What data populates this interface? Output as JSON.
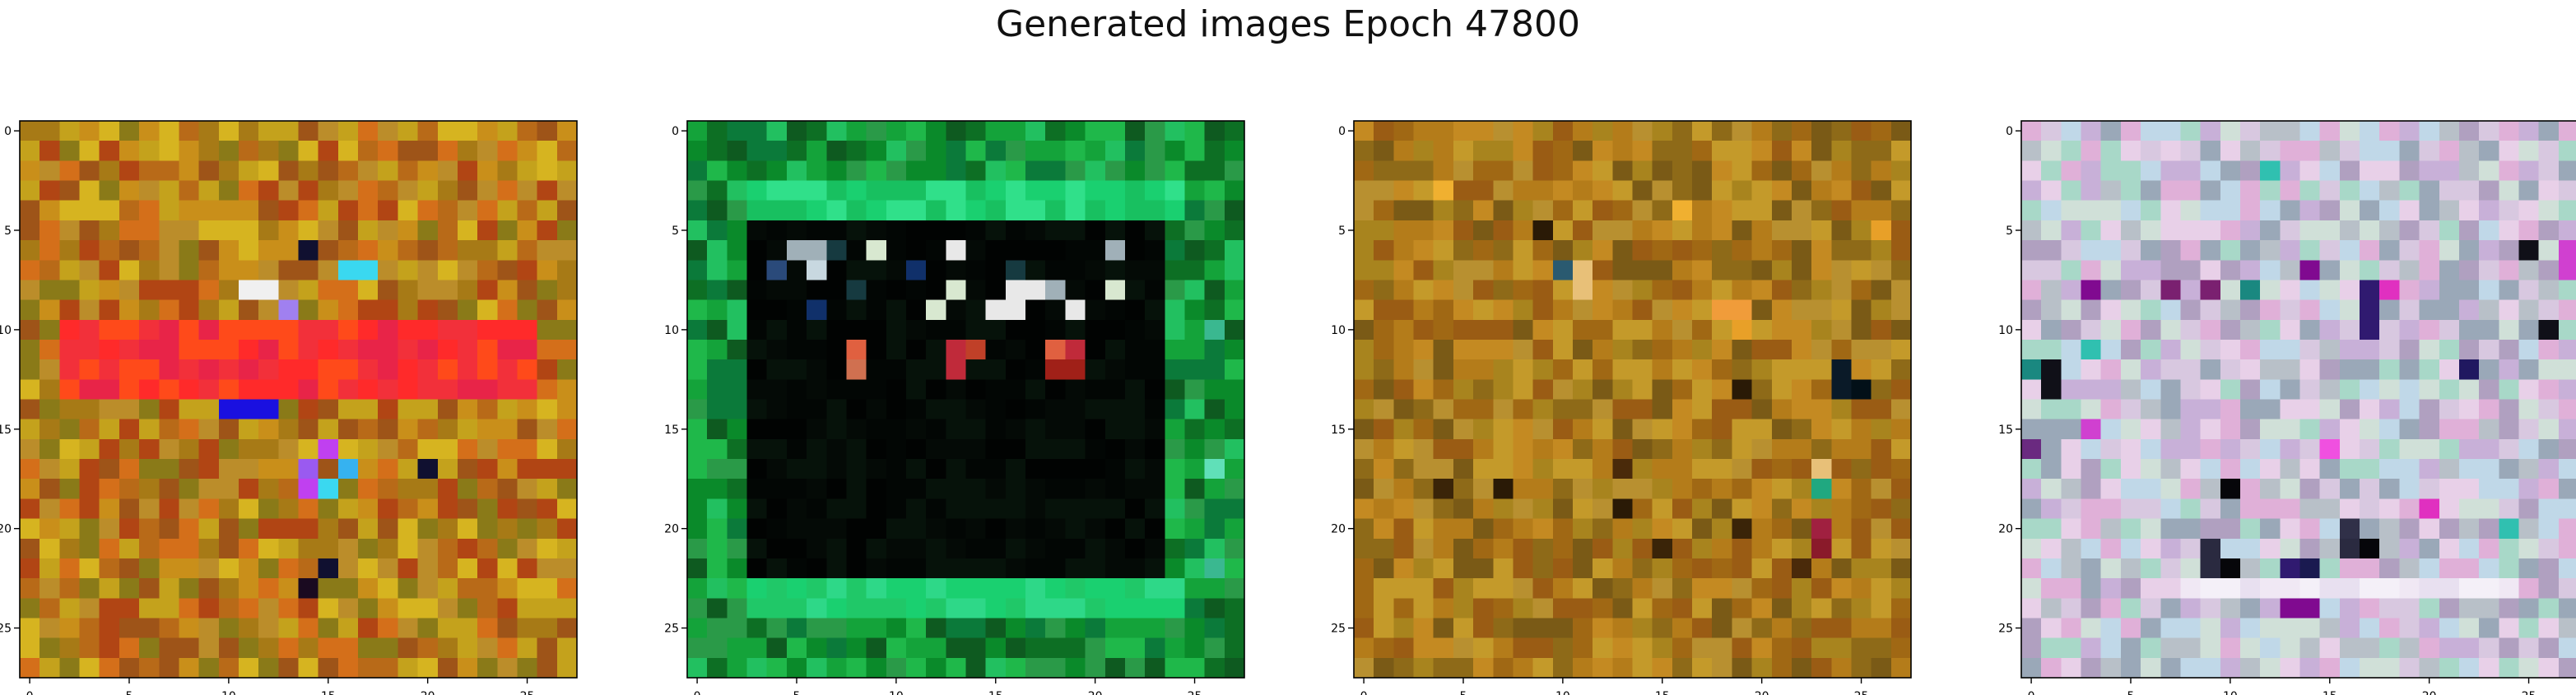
{
  "figure": {
    "title": "Generated images Epoch 47800"
  },
  "chart_data": [
    {
      "type": "heatmap",
      "panel": 1,
      "title": "",
      "xlabel": "",
      "ylabel": "",
      "xlim": [
        -0.5,
        27.5
      ],
      "ylim": [
        27.5,
        -0.5
      ],
      "grid": false,
      "x_ticks": [
        0,
        5,
        10,
        15,
        20,
        25
      ],
      "y_ticks": [
        0,
        5,
        10,
        15,
        20,
        25
      ],
      "x_tick_labels": [
        "0",
        "5",
        "10",
        "15",
        "20",
        "25"
      ],
      "y_tick_labels": [
        "0",
        "5",
        "10",
        "15",
        "20",
        "25"
      ],
      "grid_size": 28,
      "palette": [
        "#c98f1a",
        "#b86a18",
        "#a77a16",
        "#c4a21c",
        "#d46f1a",
        "#9e5418",
        "#bb8d2a",
        "#d6b420",
        "#8a7a18",
        "#b14514"
      ],
      "image_seed": 11,
      "features": [
        {
          "shape": "band",
          "rows": [
            10,
            13
          ],
          "cols": [
            2,
            25
          ],
          "colors": [
            "#ff2a2a",
            "#f2303a",
            "#ff4a1a",
            "#e82448"
          ]
        },
        {
          "shape": "cells",
          "colors": [
            "#1a10e0"
          ],
          "cells": [
            [
              14,
              10
            ],
            [
              14,
              11
            ],
            [
              14,
              12
            ]
          ]
        },
        {
          "shape": "cells",
          "colors": [
            "#3ad8f0",
            "#36b2f0"
          ],
          "cells": [
            [
              7,
              16
            ],
            [
              7,
              17
            ],
            [
              18,
              15
            ],
            [
              17,
              16
            ]
          ]
        },
        {
          "shape": "cells",
          "colors": [
            "#a080f0",
            "#9a5af0",
            "#c040f0"
          ],
          "cells": [
            [
              9,
              13
            ],
            [
              16,
              15
            ],
            [
              18,
              14
            ],
            [
              17,
              14
            ]
          ]
        },
        {
          "shape": "cells",
          "colors": [
            "#101030",
            "#1a0a20"
          ],
          "cells": [
            [
              6,
              14
            ],
            [
              23,
              14
            ],
            [
              22,
              15
            ],
            [
              17,
              20
            ]
          ]
        },
        {
          "shape": "cells",
          "colors": [
            "#f0f0f0"
          ],
          "cells": [
            [
              8,
              11
            ],
            [
              8,
              12
            ]
          ]
        }
      ]
    },
    {
      "type": "heatmap",
      "panel": 2,
      "title": "",
      "xlabel": "",
      "ylabel": "",
      "xlim": [
        -0.5,
        27.5
      ],
      "ylim": [
        27.5,
        -0.5
      ],
      "grid": false,
      "x_ticks": [
        0,
        5,
        10,
        15,
        20,
        25
      ],
      "y_ticks": [
        0,
        5,
        10,
        15,
        20,
        25
      ],
      "x_tick_labels": [
        "0",
        "5",
        "10",
        "15",
        "20",
        "25"
      ],
      "y_tick_labels": [
        "0",
        "5",
        "10",
        "15",
        "20",
        "25"
      ],
      "grid_size": 28,
      "palette": [
        "#0a8a2a",
        "#14a33a",
        "#0d6f24",
        "#1fb84a",
        "#0b7a3a",
        "#22c060",
        "#0e5a20",
        "#2a9a48"
      ],
      "image_seed": 23,
      "features": [
        {
          "shape": "rect",
          "rows": [
            5,
            22
          ],
          "cols": [
            3,
            23
          ],
          "colors": [
            "#020604",
            "#040a06",
            "#06120a",
            "#010302"
          ]
        },
        {
          "shape": "band",
          "rows": [
            3,
            4
          ],
          "cols": [
            3,
            24
          ],
          "colors": [
            "#1ad070",
            "#30e08a",
            "#18c060"
          ]
        },
        {
          "shape": "band",
          "rows": [
            23,
            24
          ],
          "cols": [
            3,
            24
          ],
          "colors": [
            "#1ad070",
            "#20c868",
            "#2ed888"
          ]
        },
        {
          "shape": "cells",
          "colors": [
            "#e8e8e8",
            "#c8d8e0",
            "#a0b0b8",
            "#d8e8d0"
          ],
          "cells": [
            [
              6,
              5
            ],
            [
              6,
              6
            ],
            [
              6,
              9
            ],
            [
              6,
              13
            ],
            [
              6,
              21
            ],
            [
              7,
              6
            ],
            [
              8,
              13
            ],
            [
              8,
              16
            ],
            [
              8,
              17
            ],
            [
              8,
              18
            ],
            [
              9,
              12
            ],
            [
              9,
              15
            ],
            [
              9,
              16
            ],
            [
              9,
              19
            ],
            [
              8,
              21
            ]
          ]
        },
        {
          "shape": "cells",
          "colors": [
            "#10306a",
            "#2a4a7a",
            "#163a40"
          ],
          "cells": [
            [
              6,
              7
            ],
            [
              7,
              4
            ],
            [
              7,
              11
            ],
            [
              7,
              16
            ],
            [
              9,
              6
            ],
            [
              8,
              8
            ]
          ]
        },
        {
          "shape": "cells",
          "colors": [
            "#e06040",
            "#c04028",
            "#f07060",
            "#a02018",
            "#c02a3a"
          ],
          "cells": [
            [
              11,
              8
            ],
            [
              11,
              13
            ],
            [
              11,
              18
            ],
            [
              11,
              19
            ],
            [
              12,
              8
            ],
            [
              12,
              13
            ],
            [
              12,
              18
            ],
            [
              12,
              19
            ],
            [
              11,
              14
            ]
          ]
        },
        {
          "shape": "cells",
          "colors": [
            "#d07050",
            "#c89070"
          ],
          "cells": [
            [
              12,
              8
            ]
          ]
        },
        {
          "shape": "cells",
          "colors": [
            "#60e0b8",
            "#3ab890"
          ],
          "cells": [
            [
              10,
              26
            ],
            [
              17,
              26
            ],
            [
              22,
              26
            ]
          ]
        }
      ]
    },
    {
      "type": "heatmap",
      "panel": 3,
      "title": "",
      "xlabel": "",
      "ylabel": "",
      "xlim": [
        -0.5,
        27.5
      ],
      "ylim": [
        27.5,
        -0.5
      ],
      "grid": false,
      "x_ticks": [
        0,
        5,
        10,
        15,
        20,
        25
      ],
      "y_ticks": [
        0,
        5,
        10,
        15,
        20,
        25
      ],
      "x_tick_labels": [
        "0",
        "5",
        "10",
        "15",
        "20",
        "25"
      ],
      "y_tick_labels": [
        "0",
        "5",
        "10",
        "15",
        "20",
        "25"
      ],
      "grid_size": 28,
      "palette": [
        "#b47c1a",
        "#a06814",
        "#c48a22",
        "#8e6a18",
        "#b89030",
        "#9a5c14",
        "#a8841e",
        "#c49a2a",
        "#7a5a16"
      ],
      "image_seed": 37,
      "features": [
        {
          "shape": "cells",
          "colors": [
            "#3a2408",
            "#2a1a06",
            "#4a2a0a"
          ],
          "cells": [
            [
              5,
              9
            ],
            [
              7,
              10
            ],
            [
              18,
              4
            ],
            [
              18,
              7
            ],
            [
              17,
              13
            ],
            [
              19,
              13
            ],
            [
              13,
              19
            ],
            [
              17,
              23
            ],
            [
              20,
              19
            ],
            [
              21,
              15
            ],
            [
              22,
              22
            ]
          ]
        },
        {
          "shape": "cells",
          "colors": [
            "#021018",
            "#0a1a28"
          ],
          "cells": [
            [
              12,
              24
            ],
            [
              13,
              24
            ],
            [
              13,
              25
            ]
          ]
        },
        {
          "shape": "cells",
          "colors": [
            "#2a5a70"
          ],
          "cells": [
            [
              7,
              10
            ]
          ]
        },
        {
          "shape": "cells",
          "colors": [
            "#e0c0a0",
            "#d8a870",
            "#e8c078"
          ],
          "cells": [
            [
              7,
              11
            ],
            [
              8,
              11
            ],
            [
              17,
              23
            ],
            [
              9,
              19
            ]
          ]
        },
        {
          "shape": "cells",
          "colors": [
            "#a02040",
            "#8a1a2a"
          ],
          "cells": [
            [
              20,
              23
            ],
            [
              21,
              23
            ]
          ]
        },
        {
          "shape": "cells",
          "colors": [
            "#20a880"
          ],
          "cells": [
            [
              18,
              23
            ]
          ]
        },
        {
          "shape": "cells",
          "colors": [
            "#f0b030",
            "#e8a028",
            "#f09c3a"
          ],
          "cells": [
            [
              3,
              4
            ],
            [
              4,
              16
            ],
            [
              9,
              18
            ],
            [
              9,
              19
            ],
            [
              10,
              19
            ],
            [
              5,
              26
            ]
          ]
        }
      ]
    },
    {
      "type": "heatmap",
      "panel": 4,
      "title": "",
      "xlabel": "",
      "ylabel": "",
      "xlim": [
        -0.5,
        27.5
      ],
      "ylim": [
        27.5,
        -0.5
      ],
      "grid": false,
      "x_ticks": [
        0,
        5,
        10,
        15,
        20,
        25
      ],
      "y_ticks": [
        0,
        5,
        10,
        15,
        20,
        25
      ],
      "x_tick_labels": [
        "0",
        "5",
        "10",
        "15",
        "20",
        "25"
      ],
      "y_tick_labels": [
        "0",
        "5",
        "10",
        "15",
        "20",
        "25"
      ],
      "grid_size": 28,
      "palette": [
        "#d8c8e0",
        "#c0d8e8",
        "#e0b0d8",
        "#b8c0c8",
        "#a8d8c8",
        "#e8d0e8",
        "#c8b0d8",
        "#9aa8b8",
        "#d0e0d8",
        "#b0a0c0"
      ],
      "image_seed": 53,
      "features": [
        {
          "shape": "band",
          "rows": [
            23,
            23
          ],
          "cols": [
            8,
            24
          ],
          "colors": [
            "#f0e8f4",
            "#e8e0f0",
            "#f4f0f8"
          ]
        },
        {
          "shape": "cells",
          "colors": [
            "#101018",
            "#06060a"
          ],
          "cells": [
            [
              6,
              25
            ],
            [
              12,
              1
            ],
            [
              13,
              1
            ],
            [
              18,
              10
            ],
            [
              10,
              26
            ],
            [
              21,
              17
            ],
            [
              22,
              10
            ]
          ]
        },
        {
          "shape": "cells",
          "colors": [
            "#201860",
            "#301a70",
            "#1a1a50"
          ],
          "cells": [
            [
              8,
              17
            ],
            [
              9,
              17
            ],
            [
              10,
              17
            ],
            [
              22,
              13
            ],
            [
              22,
              14
            ],
            [
              12,
              22
            ]
          ]
        },
        {
          "shape": "cells",
          "colors": [
            "#6a2a80",
            "#800a90",
            "#7a2070"
          ],
          "cells": [
            [
              16,
              0
            ],
            [
              24,
              13
            ],
            [
              24,
              14
            ],
            [
              8,
              3
            ],
            [
              8,
              7
            ],
            [
              8,
              9
            ],
            [
              7,
              14
            ]
          ]
        },
        {
          "shape": "cells",
          "colors": [
            "#20a090",
            "#1a8880",
            "#30c0b0"
          ],
          "cells": [
            [
              2,
              12
            ],
            [
              11,
              3
            ],
            [
              12,
              0
            ],
            [
              20,
              24
            ],
            [
              8,
              11
            ]
          ]
        },
        {
          "shape": "cells",
          "colors": [
            "#e030c0",
            "#d040d0",
            "#f050e0"
          ],
          "cells": [
            [
              6,
              27
            ],
            [
              7,
              27
            ],
            [
              15,
              3
            ],
            [
              16,
              15
            ],
            [
              19,
              20
            ],
            [
              8,
              18
            ]
          ]
        },
        {
          "shape": "cells",
          "colors": [
            "#2a2a40",
            "#303048"
          ],
          "cells": [
            [
              21,
              9
            ],
            [
              22,
              9
            ],
            [
              20,
              16
            ],
            [
              21,
              16
            ]
          ]
        }
      ]
    }
  ]
}
